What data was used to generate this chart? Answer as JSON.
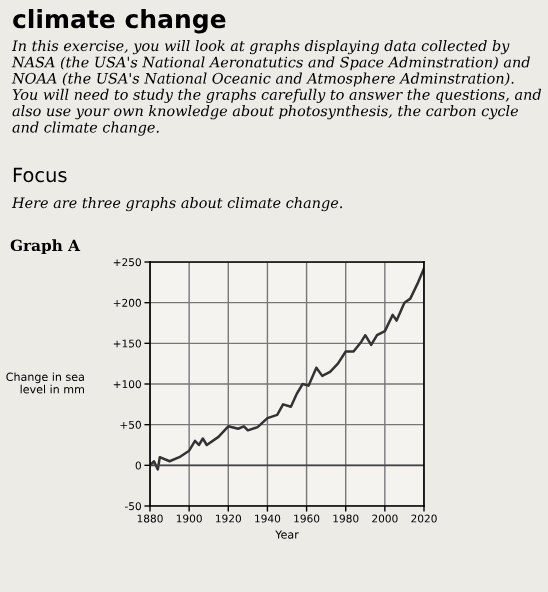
{
  "chart_data": {
    "type": "line",
    "title": "Graph A",
    "xlabel": "Year",
    "ylabel": "Change in sea level in mm",
    "annotations": [
      "climate change",
      "In this exercise, you will look at graphs displaying data collected by NASA (the USA's National Aeronatutics and Space Adminstration) and NOAA (the USA's National Oceanic and Atmosphere Adminstration). You will need to study the graphs carefully to answer the questions, and also use your own knowledge about photosynthesis, the carbon cycle and climate change.",
      "Focus",
      "Here are three graphs about climate change."
    ],
    "x": [
      1880,
      1882,
      1884,
      1885,
      1890,
      1895,
      1900,
      1903,
      1905,
      1907,
      1909,
      1915,
      1920,
      1925,
      1928,
      1930,
      1935,
      1940,
      1945,
      1948,
      1952,
      1955,
      1958,
      1961,
      1965,
      1968,
      1972,
      1976,
      1980,
      1984,
      1988,
      1990,
      1993,
      1996,
      2000,
      2004,
      2006,
      2010,
      2013,
      2017,
      2020
    ],
    "series": [
      {
        "color": "#333333",
        "values": [
          0,
          5,
          -5,
          10,
          5,
          10,
          18,
          30,
          25,
          33,
          25,
          35,
          48,
          45,
          48,
          43,
          47,
          58,
          62,
          75,
          72,
          88,
          100,
          98,
          120,
          110,
          115,
          125,
          140,
          140,
          152,
          160,
          148,
          160,
          165,
          185,
          178,
          200,
          205,
          225,
          242
        ]
      }
    ],
    "xlim": [
      1880,
      2020
    ],
    "xticks": [
      1880,
      1900,
      1920,
      1940,
      1960,
      1980,
      2000,
      2020
    ],
    "ylim": [
      -50,
      250
    ],
    "yticks": [
      -50,
      0,
      {
        "value": 50,
        "label": "+50"
      },
      {
        "value": 100,
        "label": "+100"
      },
      {
        "value": 150,
        "label": "+150"
      },
      {
        "value": 200,
        "label": "+200"
      },
      {
        "value": 250,
        "label": "+250"
      }
    ],
    "grid": true,
    "marker": "none",
    "line_style": "solid"
  }
}
